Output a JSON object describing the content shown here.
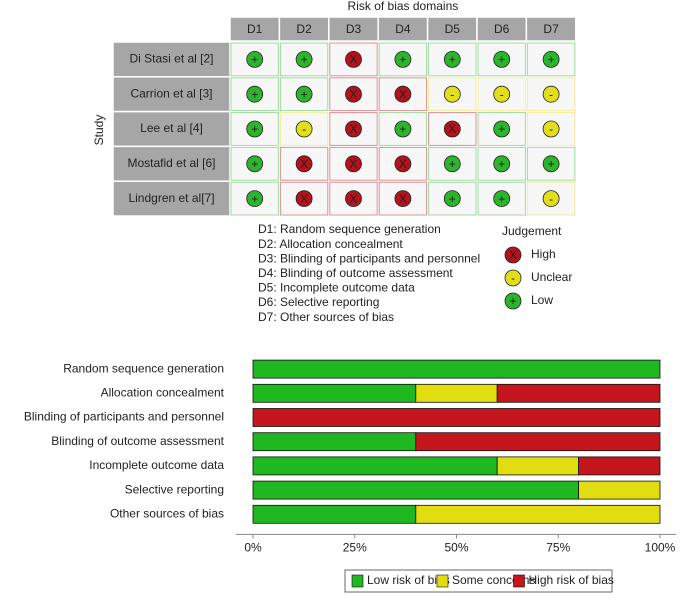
{
  "chart_data": [
    {
      "type": "trafficlight",
      "title": "Risk of bias domains",
      "ylabel": "Study",
      "domains": [
        "D1",
        "D2",
        "D3",
        "D4",
        "D5",
        "D6",
        "D7"
      ],
      "studies": [
        "Di Stasi et al [2]",
        "Carrion et al [3]",
        "Lee et al [4]",
        "Mostafid et al [6]",
        "Lindgren et al[7]"
      ],
      "judgements": [
        [
          "+",
          "+",
          "X",
          "+",
          "+",
          "+",
          "+"
        ],
        [
          "+",
          "+",
          "X",
          "X",
          "-",
          "-",
          "-"
        ],
        [
          "+",
          "-",
          "X",
          "+",
          "X",
          "+",
          "-"
        ],
        [
          "+",
          "X",
          "X",
          "X",
          "+",
          "+",
          "+"
        ],
        [
          "+",
          "X",
          "X",
          "X",
          "+",
          "+",
          "-"
        ]
      ],
      "notes": [
        "D1: Random sequence generation",
        "D2: Allocation concealment",
        "D3: Blinding of participants and personnel",
        "D4: Blinding of outcome assessment",
        "D5: Incomplete outcome data",
        "D6: Selective reporting",
        "D7: Other sources of bias"
      ],
      "legend_title": "Judgement",
      "legend": [
        {
          "symbol": "X",
          "name": "High",
          "color": "#b5121b"
        },
        {
          "symbol": "-",
          "name": "Unclear",
          "color": "#e3de1c"
        },
        {
          "symbol": "+",
          "name": "Low",
          "color": "#2cb52c"
        }
      ]
    },
    {
      "type": "stackedbar",
      "orientation": "horizontal",
      "categories": [
        "Random sequence generation",
        "Allocation concealment",
        "Blinding of participants and personnel",
        "Blinding of outcome assessment",
        "Incomplete outcome data",
        "Selective reporting",
        "Other sources of bias"
      ],
      "series": [
        {
          "name": "Low risk of bias",
          "color": "#20b820",
          "values": [
            100,
            40,
            0,
            40,
            60,
            80,
            40
          ]
        },
        {
          "name": "Some concerns",
          "color": "#e1dd10",
          "values": [
            0,
            20,
            0,
            0,
            20,
            20,
            60
          ]
        },
        {
          "name": "High risk of bias",
          "color": "#c4161c",
          "values": [
            0,
            40,
            100,
            60,
            20,
            0,
            0
          ]
        }
      ],
      "xlim": [
        0,
        100
      ],
      "xticks": [
        {
          "value": 0,
          "label": "0%"
        },
        {
          "value": 25,
          "label": "25%"
        },
        {
          "value": 50,
          "label": "50%"
        },
        {
          "value": 75,
          "label": "75%"
        },
        {
          "value": 100,
          "label": "100%"
        }
      ],
      "legend": "bottom"
    }
  ]
}
